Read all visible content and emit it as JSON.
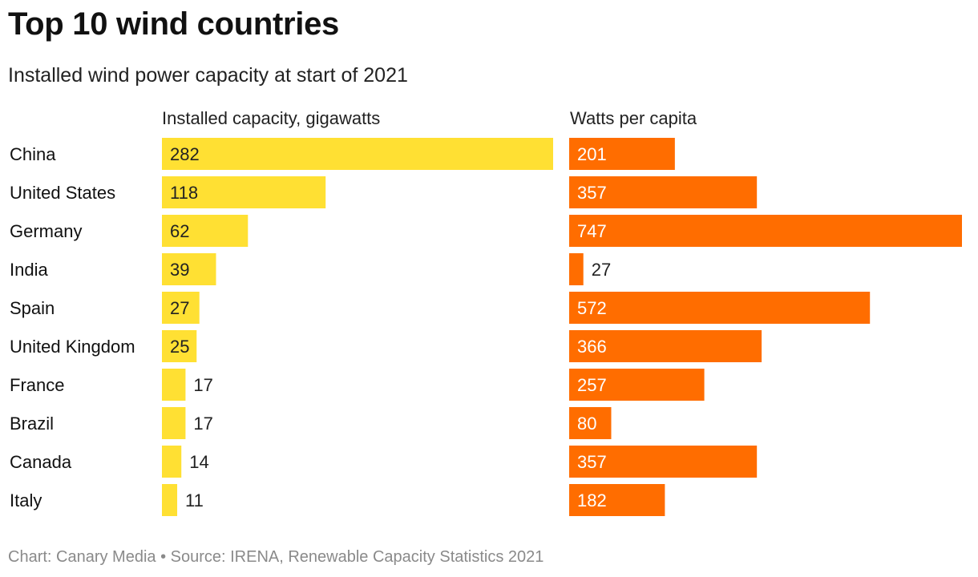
{
  "header": {
    "title": "Top 10 wind countries",
    "subtitle": "Installed wind power capacity at start of 2021"
  },
  "footer": {
    "source": "Chart: Canary Media • Source: IRENA, Renewable Capacity Statistics 2021"
  },
  "colors": {
    "capacity": "#ffe033",
    "per_capita": "#ff6d00",
    "label_dark": "#222222",
    "label_light": "#ffffff"
  },
  "chart_data": {
    "type": "bar",
    "orientation": "horizontal",
    "title": "Top 10 wind countries",
    "subtitle": "Installed wind power capacity at start of 2021",
    "categories": [
      "China",
      "United States",
      "Germany",
      "India",
      "Spain",
      "United Kingdom",
      "France",
      "Brazil",
      "Canada",
      "Italy"
    ],
    "series": [
      {
        "name": "Installed capacity, gigawatts",
        "values": [
          282,
          118,
          62,
          39,
          27,
          25,
          17,
          17,
          14,
          11
        ],
        "xlim": [
          0,
          282
        ],
        "color": "#ffe033",
        "label_color": "#222222"
      },
      {
        "name": "Watts per capita",
        "values": [
          201,
          357,
          747,
          27,
          572,
          366,
          257,
          80,
          357,
          182
        ],
        "xlim": [
          0,
          747
        ],
        "color": "#ff6d00",
        "label_color": "#ffffff"
      }
    ],
    "legend": "none",
    "grid": false
  }
}
